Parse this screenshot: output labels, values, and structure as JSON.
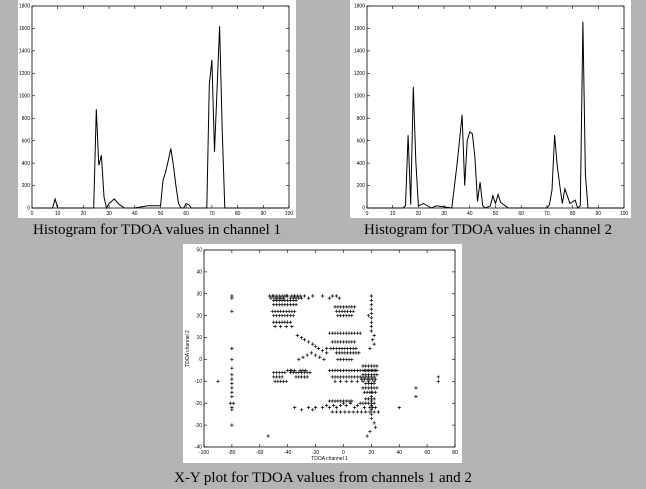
{
  "captions": {
    "hist1": "Histogram for TDOA values in channel 1",
    "hist2": "Histogram for TDOA values in channel 2",
    "scatter": "X-Y plot for TDOA values from channels 1 and 2"
  },
  "colors": {
    "background": "#b3b3b3",
    "panel": "#ffffff",
    "ink": "#000000"
  },
  "chart_data": [
    {
      "type": "line",
      "caption": "Histogram for TDOA values in channel 1",
      "xlim": [
        0,
        100
      ],
      "ylim": [
        0,
        1800
      ],
      "xticks": [
        0,
        10,
        20,
        30,
        40,
        50,
        60,
        70,
        80,
        90,
        100
      ],
      "yticks": [
        0,
        200,
        400,
        600,
        800,
        1000,
        1200,
        1400,
        1600,
        1800
      ],
      "grid": false,
      "x": [
        0,
        8,
        9,
        10,
        24,
        25,
        26,
        27,
        28,
        29,
        30,
        32,
        34,
        36,
        40,
        45,
        50,
        51,
        52,
        53,
        54,
        55,
        56,
        57,
        58,
        59,
        60,
        61,
        62,
        63,
        65,
        68,
        69,
        70,
        71,
        72,
        73,
        74,
        75,
        100
      ],
      "y": [
        0,
        0,
        80,
        0,
        0,
        880,
        380,
        470,
        100,
        0,
        40,
        80,
        30,
        0,
        0,
        20,
        20,
        250,
        320,
        420,
        530,
        380,
        200,
        40,
        0,
        0,
        40,
        30,
        0,
        0,
        0,
        0,
        1100,
        1320,
        500,
        1050,
        1620,
        700,
        0,
        0
      ]
    },
    {
      "type": "line",
      "caption": "Histogram for TDOA values in channel 2",
      "xlim": [
        0,
        100
      ],
      "ylim": [
        0,
        1800
      ],
      "xticks": [
        0,
        10,
        20,
        30,
        40,
        50,
        60,
        70,
        80,
        90,
        100
      ],
      "yticks": [
        0,
        200,
        400,
        600,
        800,
        1000,
        1200,
        1400,
        1600,
        1800
      ],
      "grid": false,
      "x": [
        0,
        14,
        15,
        16,
        17,
        18,
        19,
        20,
        22,
        25,
        27,
        30,
        33,
        35,
        36,
        37,
        38,
        39,
        40,
        41,
        42,
        43,
        44,
        45,
        46,
        48,
        49,
        50,
        51,
        52,
        55,
        70,
        71,
        72,
        73,
        74,
        75,
        76,
        77,
        79,
        81,
        82,
        83,
        84,
        85,
        86,
        100
      ],
      "y": [
        0,
        0,
        20,
        650,
        30,
        1080,
        420,
        20,
        40,
        0,
        20,
        10,
        0,
        380,
        600,
        830,
        200,
        600,
        680,
        660,
        450,
        60,
        230,
        20,
        0,
        20,
        110,
        40,
        120,
        50,
        0,
        0,
        30,
        160,
        650,
        380,
        200,
        40,
        170,
        40,
        70,
        0,
        20,
        1660,
        300,
        0,
        0
      ]
    },
    {
      "type": "scatter",
      "caption": "X-Y plot for TDOA values from channels 1 and 2",
      "xlabel": "TDOA channel 1",
      "ylabel": "TDOA channel 2",
      "xlim": [
        -100,
        80
      ],
      "ylim": [
        -40,
        50
      ],
      "xticks": [
        -100,
        -80,
        -60,
        -40,
        -20,
        0,
        20,
        40,
        60,
        80
      ],
      "yticks": [
        -40,
        -30,
        -20,
        -10,
        0,
        10,
        20,
        30,
        40,
        50
      ],
      "grid": false,
      "x": [
        -54,
        -90,
        -80,
        -80,
        -80,
        -80,
        -80,
        -80,
        -80,
        -80,
        -80,
        -80,
        -80,
        -80,
        -81,
        -79,
        -80,
        -80,
        -80,
        -35,
        -30,
        -28,
        -25,
        -22,
        -15,
        -10,
        -8,
        -5,
        -3,
        -40,
        -41,
        -42,
        -43,
        -44,
        -45,
        -46,
        -47,
        -48,
        -49,
        -50,
        -51,
        -52,
        -53,
        -38,
        -37,
        -36,
        -35,
        -34,
        -33,
        -32,
        -31,
        -50,
        -48,
        -46,
        -44,
        -42,
        -40,
        -38,
        -36,
        -34,
        -50,
        -48,
        -46,
        -44,
        -42,
        -40,
        -38,
        -36,
        -34,
        -51,
        -49,
        -47,
        -45,
        -43,
        -41,
        -39,
        -37,
        -35,
        -6,
        -4,
        -2,
        0,
        2,
        4,
        6,
        8,
        -5,
        -3,
        -1,
        1,
        3,
        5,
        7,
        -4,
        -2,
        0,
        2,
        4,
        6,
        20,
        20,
        20,
        20,
        20,
        20,
        20,
        20,
        20,
        22,
        21,
        22,
        19,
        18,
        -50,
        -48,
        -46,
        -44,
        -42,
        -40,
        -38,
        -36,
        -50,
        -48,
        -46,
        -44,
        -42,
        -40,
        -38,
        -49,
        -45,
        -41,
        -37,
        -10,
        -8,
        -6,
        -4,
        -2,
        0,
        2,
        4,
        6,
        8,
        10,
        12,
        -8,
        -6,
        -4,
        -2,
        0,
        2,
        4,
        6,
        8,
        -12,
        -9,
        -7,
        -5,
        -3,
        -1,
        1,
        3,
        5,
        7,
        9,
        -5,
        -3,
        -1,
        1,
        3,
        5,
        7,
        9,
        11,
        -4,
        -2,
        0,
        2,
        4,
        6,
        -33,
        -30,
        -28,
        -25,
        -22,
        -20,
        -18,
        -15,
        -12,
        -32,
        -29,
        -26,
        -23,
        -20,
        -17,
        -14,
        -40,
        -38,
        -37,
        -35,
        -31,
        -29,
        -27,
        14,
        16,
        18,
        20,
        22,
        24,
        15,
        17,
        19,
        21,
        23,
        14,
        16,
        18,
        20,
        22,
        24,
        13,
        15,
        17,
        19,
        21,
        23,
        16,
        18,
        20,
        22,
        14,
        16,
        18,
        20,
        22,
        24,
        15,
        17,
        19,
        21,
        23,
        16,
        18,
        20,
        22,
        14,
        16,
        18,
        20,
        22,
        19,
        21,
        23,
        -50,
        -48,
        -46,
        -44,
        -42,
        -50,
        -48,
        -46,
        -44,
        -49,
        -47,
        -45,
        -43,
        -41,
        -38,
        -36,
        -34,
        -32,
        -30,
        -28,
        -26,
        -24,
        -34,
        -32,
        -30,
        -28,
        -26,
        -10,
        -8,
        -6,
        -4,
        -2,
        0,
        2,
        4,
        6,
        8,
        10,
        12,
        14,
        16,
        18,
        20,
        22,
        24,
        -8,
        -6,
        -4,
        -2,
        0,
        2,
        4,
        6,
        8,
        10,
        12,
        14,
        16,
        18,
        20,
        22,
        -6,
        -2,
        2,
        6,
        10,
        14,
        18,
        22,
        20,
        20,
        20,
        20,
        20,
        20,
        20,
        20,
        20,
        22,
        23,
        19,
        17,
        52,
        52,
        68,
        68,
        40,
        -35,
        -30,
        -25,
        -22,
        -20,
        -15,
        -12,
        -10,
        -7,
        -5,
        -2,
        0,
        2,
        5,
        8,
        10,
        12,
        15,
        -10,
        -8,
        -6,
        -4,
        -2,
        0,
        2,
        4,
        6,
        -8,
        -5,
        -2,
        1,
        4,
        7,
        10,
        13,
        16,
        19,
        22,
        25
      ],
      "y": [
        -35,
        -10,
        29,
        28,
        22,
        5,
        0,
        -4,
        -7,
        -9,
        -11,
        -13,
        -15,
        -17,
        -20,
        -20,
        -22,
        -23,
        -30,
        29,
        28,
        29,
        28,
        29,
        29,
        28,
        29,
        29,
        28,
        29,
        29,
        29,
        28,
        29,
        28,
        29,
        28,
        29,
        28,
        29,
        29,
        28,
        29,
        28,
        29,
        28,
        29,
        28,
        29,
        28,
        29,
        27,
        27,
        27,
        27,
        27,
        27,
        27,
        27,
        27,
        25,
        25,
        25,
        25,
        25,
        25,
        25,
        25,
        25,
        22,
        22,
        22,
        22,
        22,
        22,
        22,
        22,
        22,
        24,
        24,
        24,
        24,
        24,
        24,
        24,
        24,
        22,
        22,
        22,
        22,
        22,
        22,
        22,
        20,
        20,
        20,
        20,
        20,
        20,
        29,
        27,
        25,
        23,
        21,
        19,
        17,
        15,
        13,
        11,
        9,
        7,
        5,
        20,
        20,
        20,
        20,
        20,
        20,
        20,
        20,
        20,
        17,
        17,
        17,
        17,
        17,
        17,
        17,
        15,
        15,
        15,
        15,
        12,
        12,
        12,
        12,
        12,
        12,
        12,
        12,
        12,
        12,
        12,
        12,
        8,
        8,
        8,
        8,
        8,
        8,
        8,
        8,
        8,
        5,
        5,
        5,
        5,
        5,
        5,
        5,
        5,
        5,
        5,
        5,
        3,
        3,
        3,
        3,
        3,
        3,
        3,
        3,
        3,
        0,
        0,
        0,
        0,
        0,
        0,
        11,
        10,
        9,
        8,
        7,
        6,
        5,
        4,
        3,
        0,
        1,
        2,
        3,
        2,
        1,
        0,
        -5,
        -5,
        -5,
        -5,
        -5,
        -5,
        -5,
        -3,
        -3,
        -3,
        -3,
        -3,
        -3,
        -5,
        -5,
        -5,
        -5,
        -5,
        -7,
        -7,
        -7,
        -7,
        -7,
        -7,
        -9,
        -9,
        -9,
        -9,
        -9,
        -9,
        -11,
        -11,
        -11,
        -11,
        -13,
        -13,
        -13,
        -13,
        -13,
        -13,
        -15,
        -15,
        -15,
        -15,
        -15,
        -18,
        -18,
        -18,
        -18,
        -20,
        -20,
        -20,
        -20,
        -20,
        -22,
        -22,
        -22,
        -6,
        -6,
        -6,
        -6,
        -6,
        -8,
        -8,
        -8,
        -8,
        -10,
        -10,
        -10,
        -10,
        -10,
        -6,
        -6,
        -6,
        -6,
        -6,
        -6,
        -6,
        -6,
        -8,
        -8,
        -8,
        -8,
        -8,
        -5,
        -5,
        -5,
        -5,
        -5,
        -5,
        -5,
        -5,
        -5,
        -5,
        -5,
        -5,
        -5,
        -5,
        -5,
        -5,
        -5,
        -5,
        -8,
        -8,
        -8,
        -8,
        -8,
        -8,
        -8,
        -8,
        -8,
        -8,
        -8,
        -8,
        -8,
        -8,
        -8,
        -8,
        -10,
        -10,
        -10,
        -10,
        -10,
        -10,
        -10,
        -10,
        -11,
        -13,
        -15,
        -17,
        -19,
        -21,
        -23,
        -25,
        -27,
        -29,
        -31,
        -33,
        -35,
        -13,
        -17,
        -8,
        -10,
        -22,
        -22,
        -23,
        -22,
        -23,
        -22,
        -22,
        -21,
        -22,
        -21,
        -22,
        -21,
        -20,
        -21,
        -20,
        -22,
        -21,
        -20,
        -22,
        -19,
        -19,
        -19,
        -19,
        -19,
        -19,
        -19,
        -19,
        -19,
        -24,
        -24,
        -24,
        -24,
        -24,
        -24,
        -24,
        -24,
        -24,
        -24,
        -24,
        -24
      ]
    }
  ]
}
